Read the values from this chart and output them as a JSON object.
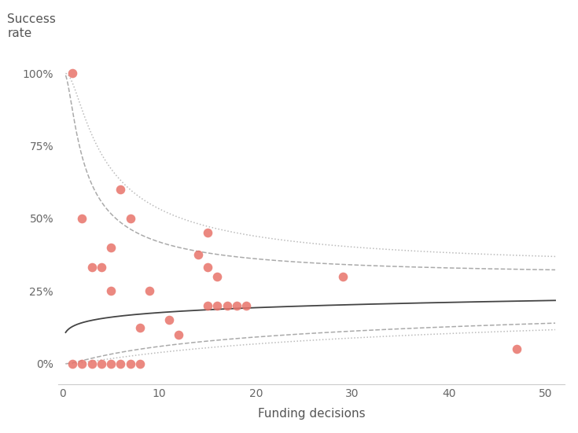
{
  "scatter_x": [
    1,
    1,
    2,
    2,
    3,
    3,
    4,
    4,
    5,
    5,
    5,
    6,
    6,
    7,
    7,
    8,
    8,
    9,
    11,
    12,
    14,
    15,
    15,
    15,
    16,
    16,
    17,
    18,
    19,
    29,
    47
  ],
  "scatter_y": [
    1.0,
    0.0,
    0.0,
    0.5,
    0.0,
    0.333,
    0.0,
    0.333,
    0.0,
    0.25,
    0.4,
    0.0,
    0.6,
    0.0,
    0.5,
    0.0,
    0.125,
    0.25,
    0.15,
    0.1,
    0.375,
    0.333,
    0.2,
    0.45,
    0.2,
    0.3,
    0.2,
    0.2,
    0.2,
    0.3,
    0.05
  ],
  "dot_color": "#E8736A",
  "dot_size": 70,
  "dot_alpha": 0.85,
  "title_line1": "Success",
  "title_line2": "rate",
  "xlabel": "Funding decisions",
  "xlabel_fontsize": 11,
  "title_fontsize": 11,
  "tick_fontsize": 10,
  "yticks": [
    0,
    0.25,
    0.5,
    0.75,
    1.0
  ],
  "ytick_labels": [
    "0%",
    "25%",
    "50%",
    "75%",
    "100%"
  ],
  "xlim": [
    -0.5,
    52
  ],
  "ylim": [
    -0.07,
    1.07
  ],
  "background_color": "#ffffff",
  "center_line_color": "#444444",
  "upper_dash_color": "#aaaaaa",
  "lower_dash_color": "#aaaaaa",
  "upper_dot_color": "#bbbbbb",
  "lower_dot_color": "#bbbbbb"
}
